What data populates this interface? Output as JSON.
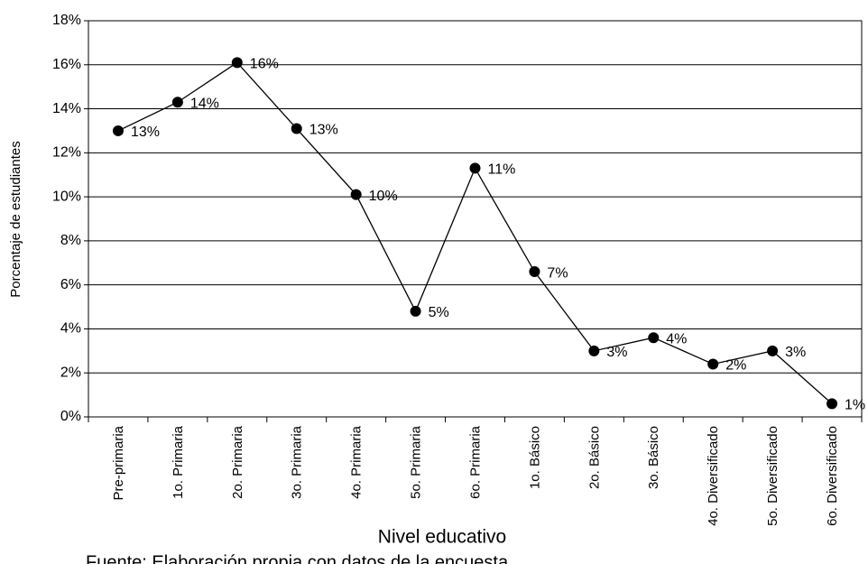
{
  "chart_data": {
    "type": "line",
    "x_label": "Nivel educativo",
    "y_label": "Porcentaje de estudiantes",
    "source": "Fuente: Elaboración propia con datos de la encuesta",
    "categories": [
      "Pre-primaria",
      "1o. Primaria",
      "2o. Primaria",
      "3o. Primaria",
      "4o. Primaria",
      "5o. Primaria",
      "6o. Primaria",
      "1o. Básico",
      "2o. Básico",
      "3o. Básico",
      "4o. Diversificado",
      "5o. Diversificado",
      "6o. Diversificado"
    ],
    "values": [
      13.0,
      14.3,
      16.1,
      13.1,
      10.1,
      4.8,
      11.3,
      6.6,
      3.0,
      3.6,
      2.4,
      3.0,
      0.6
    ],
    "value_labels": [
      "13%",
      "14%",
      "16%",
      "13%",
      "10%",
      "5%",
      "11%",
      "7%",
      "3%",
      "4%",
      "2%",
      "3%",
      "1%"
    ],
    "color": "#000000",
    "ylim": [
      0,
      18
    ],
    "yticks": [
      {
        "value": 0,
        "label": "0%"
      },
      {
        "value": 2,
        "label": "2%"
      },
      {
        "value": 4,
        "label": "4%"
      },
      {
        "value": 6,
        "label": "6%"
      },
      {
        "value": 8,
        "label": "8%"
      },
      {
        "value": 10,
        "label": "10%"
      },
      {
        "value": 12,
        "label": "12%"
      },
      {
        "value": 14,
        "label": "14%"
      },
      {
        "value": 16,
        "label": "16%"
      },
      {
        "value": 18,
        "label": "18%"
      }
    ],
    "grid": true
  }
}
